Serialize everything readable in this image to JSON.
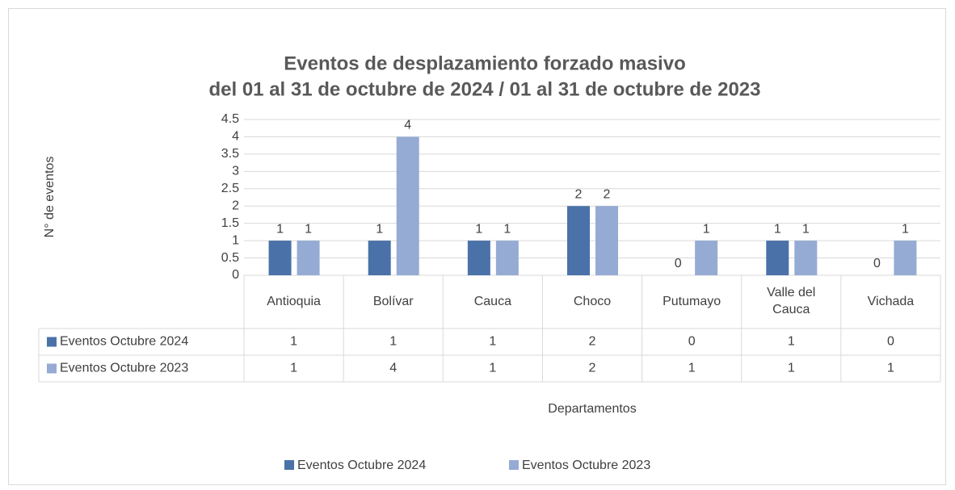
{
  "chart_data": {
    "type": "bar",
    "title": "Eventos de desplazamiento forzado masivo",
    "subtitle": "del 01 al 31 de octubre de 2024 / 01  al  31 de octubre de 2023",
    "ylabel": "N° de eventos",
    "xlabel": "Departamentos",
    "categories": [
      "Antioquia",
      "Bolívar",
      "Cauca",
      "Choco",
      "Putumayo",
      "Valle del Cauca",
      "Vichada"
    ],
    "series": [
      {
        "name": "Eventos Octubre 2024",
        "color": "#4a72a8",
        "values": [
          1,
          1,
          1,
          2,
          0,
          1,
          0
        ]
      },
      {
        "name": "Eventos Octubre 2023",
        "color": "#95abd4",
        "values": [
          1,
          4,
          1,
          2,
          1,
          1,
          1
        ]
      }
    ],
    "ylim": [
      0,
      4.5
    ],
    "yticks": [
      0,
      0.5,
      1,
      1.5,
      2,
      2.5,
      3,
      3.5,
      4,
      4.5
    ],
    "grid": true,
    "legend": "bottom",
    "data_table": true
  }
}
